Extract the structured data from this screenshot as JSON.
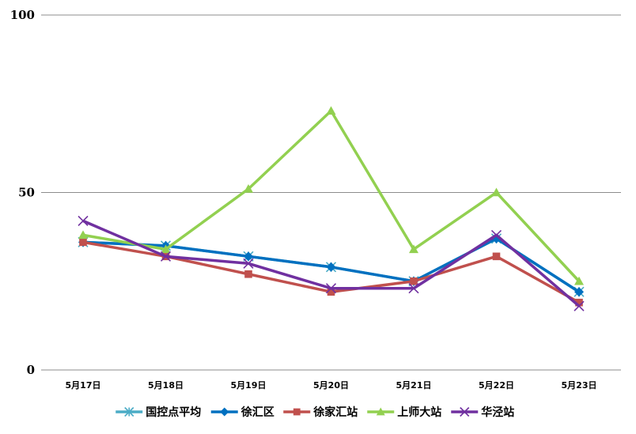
{
  "chart_data": {
    "type": "line",
    "title": "",
    "xlabel": "",
    "ylabel": "",
    "ylim": [
      0,
      100
    ],
    "yticks": [
      0,
      50,
      100
    ],
    "categories": [
      "5月17日",
      "5月18日",
      "5月19日",
      "5月20日",
      "5月21日",
      "5月22日",
      "5月23日"
    ],
    "legend_position": "bottom",
    "grid": true,
    "series": [
      {
        "name": "国控点平均",
        "color": "#4BACC6",
        "marker": "asterisk",
        "values": [
          36,
          35,
          32,
          29,
          25,
          37,
          22
        ]
      },
      {
        "name": "徐汇区",
        "color": "#0070C0",
        "marker": "diamond",
        "values": [
          36,
          35,
          32,
          29,
          25,
          37,
          22
        ]
      },
      {
        "name": "徐家汇站",
        "color": "#C0504D",
        "marker": "square",
        "values": [
          36,
          32,
          27,
          22,
          25,
          32,
          19
        ]
      },
      {
        "name": "上师大站",
        "color": "#92D050",
        "marker": "triangle",
        "values": [
          38,
          34,
          51,
          73,
          34,
          50,
          25
        ]
      },
      {
        "name": "华泾站",
        "color": "#7030A0",
        "marker": "x",
        "values": [
          42,
          32,
          30,
          23,
          23,
          38,
          18
        ]
      }
    ]
  }
}
